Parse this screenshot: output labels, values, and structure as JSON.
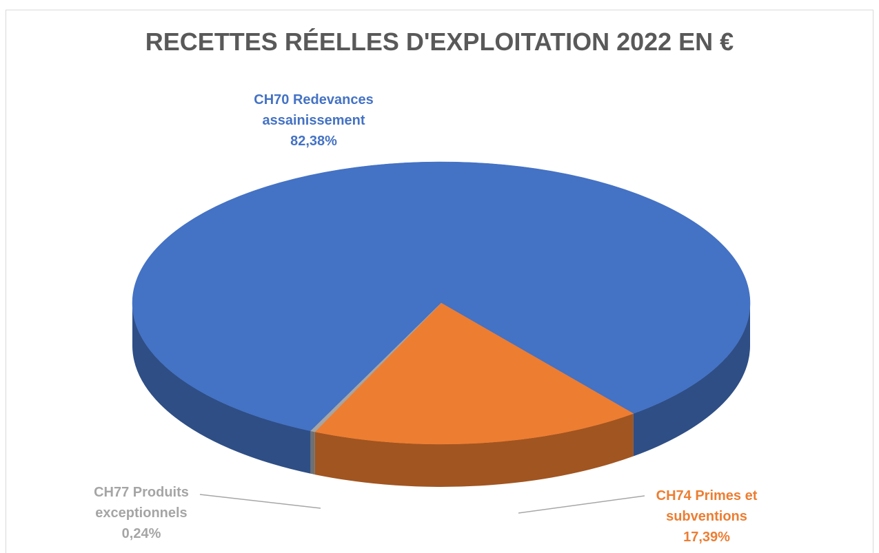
{
  "chart_data": {
    "type": "pie",
    "title": "RECETTES RÉELLES D'EXPLOITATION 2022 EN €",
    "categories": [
      "CH70 Redevances assainissement",
      "CH74 Primes et subventions",
      "CH77 Produits exceptionnels"
    ],
    "values": [
      82.38,
      17.39,
      0.24
    ],
    "value_labels": [
      "82,38%",
      "17,39%",
      "0,24%"
    ],
    "colors": [
      "#4472c4",
      "#ed7d31",
      "#a5a5a5"
    ]
  }
}
